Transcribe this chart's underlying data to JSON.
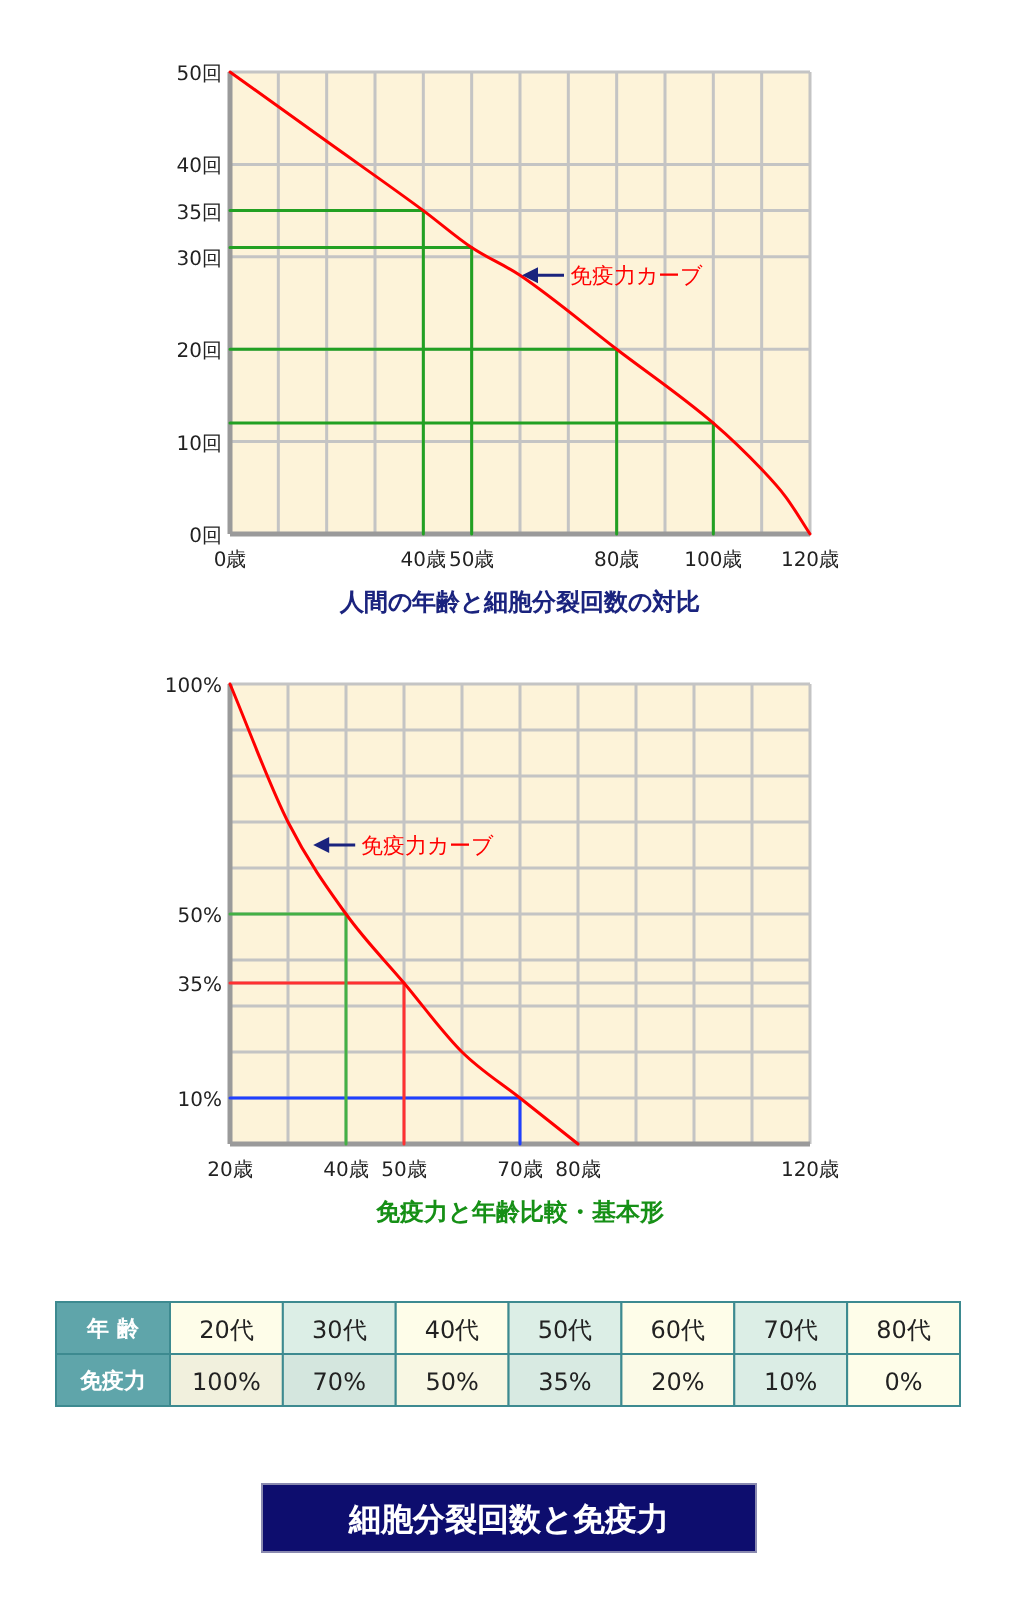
{
  "chart_data": [
    {
      "type": "line",
      "title": "人間の年齢と細胞分裂回数の対比",
      "xlim": [
        0,
        120
      ],
      "ylim": [
        0,
        50
      ],
      "xticks": [
        {
          "value": 0,
          "label": "0歳"
        },
        {
          "value": 10,
          "label": null
        },
        {
          "value": 20,
          "label": null
        },
        {
          "value": 30,
          "label": null
        },
        {
          "value": 40,
          "label": "40歳"
        },
        {
          "value": 50,
          "label": "50歳"
        },
        {
          "value": 60,
          "label": null
        },
        {
          "value": 70,
          "label": null
        },
        {
          "value": 80,
          "label": "80歳"
        },
        {
          "value": 90,
          "label": null
        },
        {
          "value": 100,
          "label": "100歳"
        },
        {
          "value": 110,
          "label": null
        },
        {
          "value": 120,
          "label": "120歳"
        }
      ],
      "yticks": [
        {
          "value": 0,
          "label": "0回"
        },
        {
          "value": 10,
          "label": "10回"
        },
        {
          "value": 20,
          "label": "20回"
        },
        {
          "value": 30,
          "label": "30回"
        },
        {
          "value": 35,
          "label": "35回"
        },
        {
          "value": 40,
          "label": "40回"
        },
        {
          "value": 50,
          "label": "50回"
        }
      ],
      "grid": true,
      "series": [
        {
          "color": "#ff0000",
          "x": [
            0,
            20,
            40,
            50,
            60,
            80,
            100,
            110,
            115,
            120
          ],
          "values": [
            50,
            42.5,
            35,
            31,
            28,
            20,
            12,
            7,
            4,
            0
          ]
        },
        {
          "color": "#22a022",
          "x": [
            0,
            40,
            40
          ],
          "values": [
            35,
            35,
            0
          ]
        },
        {
          "color": "#22a022",
          "x": [
            0,
            50,
            50
          ],
          "values": [
            31,
            31,
            0
          ]
        },
        {
          "color": "#22a022",
          "x": [
            0,
            80,
            80
          ],
          "values": [
            20,
            20,
            0
          ]
        },
        {
          "color": "#22a022",
          "x": [
            0,
            100,
            100
          ],
          "values": [
            12,
            12,
            0
          ]
        }
      ],
      "annotations": [
        {
          "text": "免疫力カーブ",
          "x": 60,
          "y": 28
        }
      ]
    },
    {
      "type": "line",
      "title": "免疫力と年齢比較・基本形",
      "xlim": [
        20,
        120
      ],
      "ylim": [
        0,
        100
      ],
      "xticks": [
        {
          "value": 20,
          "label": "20歳"
        },
        {
          "value": 30,
          "label": null
        },
        {
          "value": 40,
          "label": "40歳"
        },
        {
          "value": 50,
          "label": "50歳"
        },
        {
          "value": 60,
          "label": null
        },
        {
          "value": 70,
          "label": "70歳"
        },
        {
          "value": 80,
          "label": "80歳"
        },
        {
          "value": 90,
          "label": null
        },
        {
          "value": 100,
          "label": null
        },
        {
          "value": 110,
          "label": null
        },
        {
          "value": 120,
          "label": "120歳"
        }
      ],
      "yticks": [
        {
          "value": 0,
          "label": null
        },
        {
          "value": 10,
          "label": "10%"
        },
        {
          "value": 20,
          "label": null
        },
        {
          "value": 30,
          "label": null
        },
        {
          "value": 35,
          "label": "35%"
        },
        {
          "value": 40,
          "label": null
        },
        {
          "value": 50,
          "label": "50%"
        },
        {
          "value": 60,
          "label": null
        },
        {
          "value": 70,
          "label": null
        },
        {
          "value": 80,
          "label": null
        },
        {
          "value": 90,
          "label": null
        },
        {
          "value": 100,
          "label": "100%"
        }
      ],
      "grid": true,
      "series": [
        {
          "color": "#ff0000",
          "x": [
            20,
            30,
            40,
            50,
            60,
            70,
            80
          ],
          "values": [
            100,
            70,
            50,
            35,
            20,
            10,
            0
          ]
        },
        {
          "color": "#44b044",
          "x": [
            20,
            40,
            40
          ],
          "values": [
            50,
            50,
            0
          ]
        },
        {
          "color": "#ff3030",
          "x": [
            20,
            50,
            50
          ],
          "values": [
            35,
            35,
            0
          ]
        },
        {
          "color": "#1f3fff",
          "x": [
            20,
            70,
            70
          ],
          "values": [
            10,
            10,
            0
          ]
        }
      ],
      "annotations": [
        {
          "text": "免疫力カーブ",
          "x": 34,
          "y": 65
        }
      ]
    },
    {
      "type": "heatmap",
      "xlabel": "年 齢",
      "categories": [
        "20代",
        "30代",
        "40代",
        "50代",
        "60代",
        "70代",
        "80代"
      ],
      "y_categories": [
        "免疫力"
      ],
      "cells": [
        [
          100,
          70,
          50,
          35,
          20,
          10,
          0
        ]
      ],
      "cell_labels": [
        [
          "100%",
          "70%",
          "50%",
          "35%",
          "20%",
          "10%",
          "0%"
        ]
      ],
      "annotations": [
        "細胞分裂回数と免疫力"
      ]
    }
  ]
}
